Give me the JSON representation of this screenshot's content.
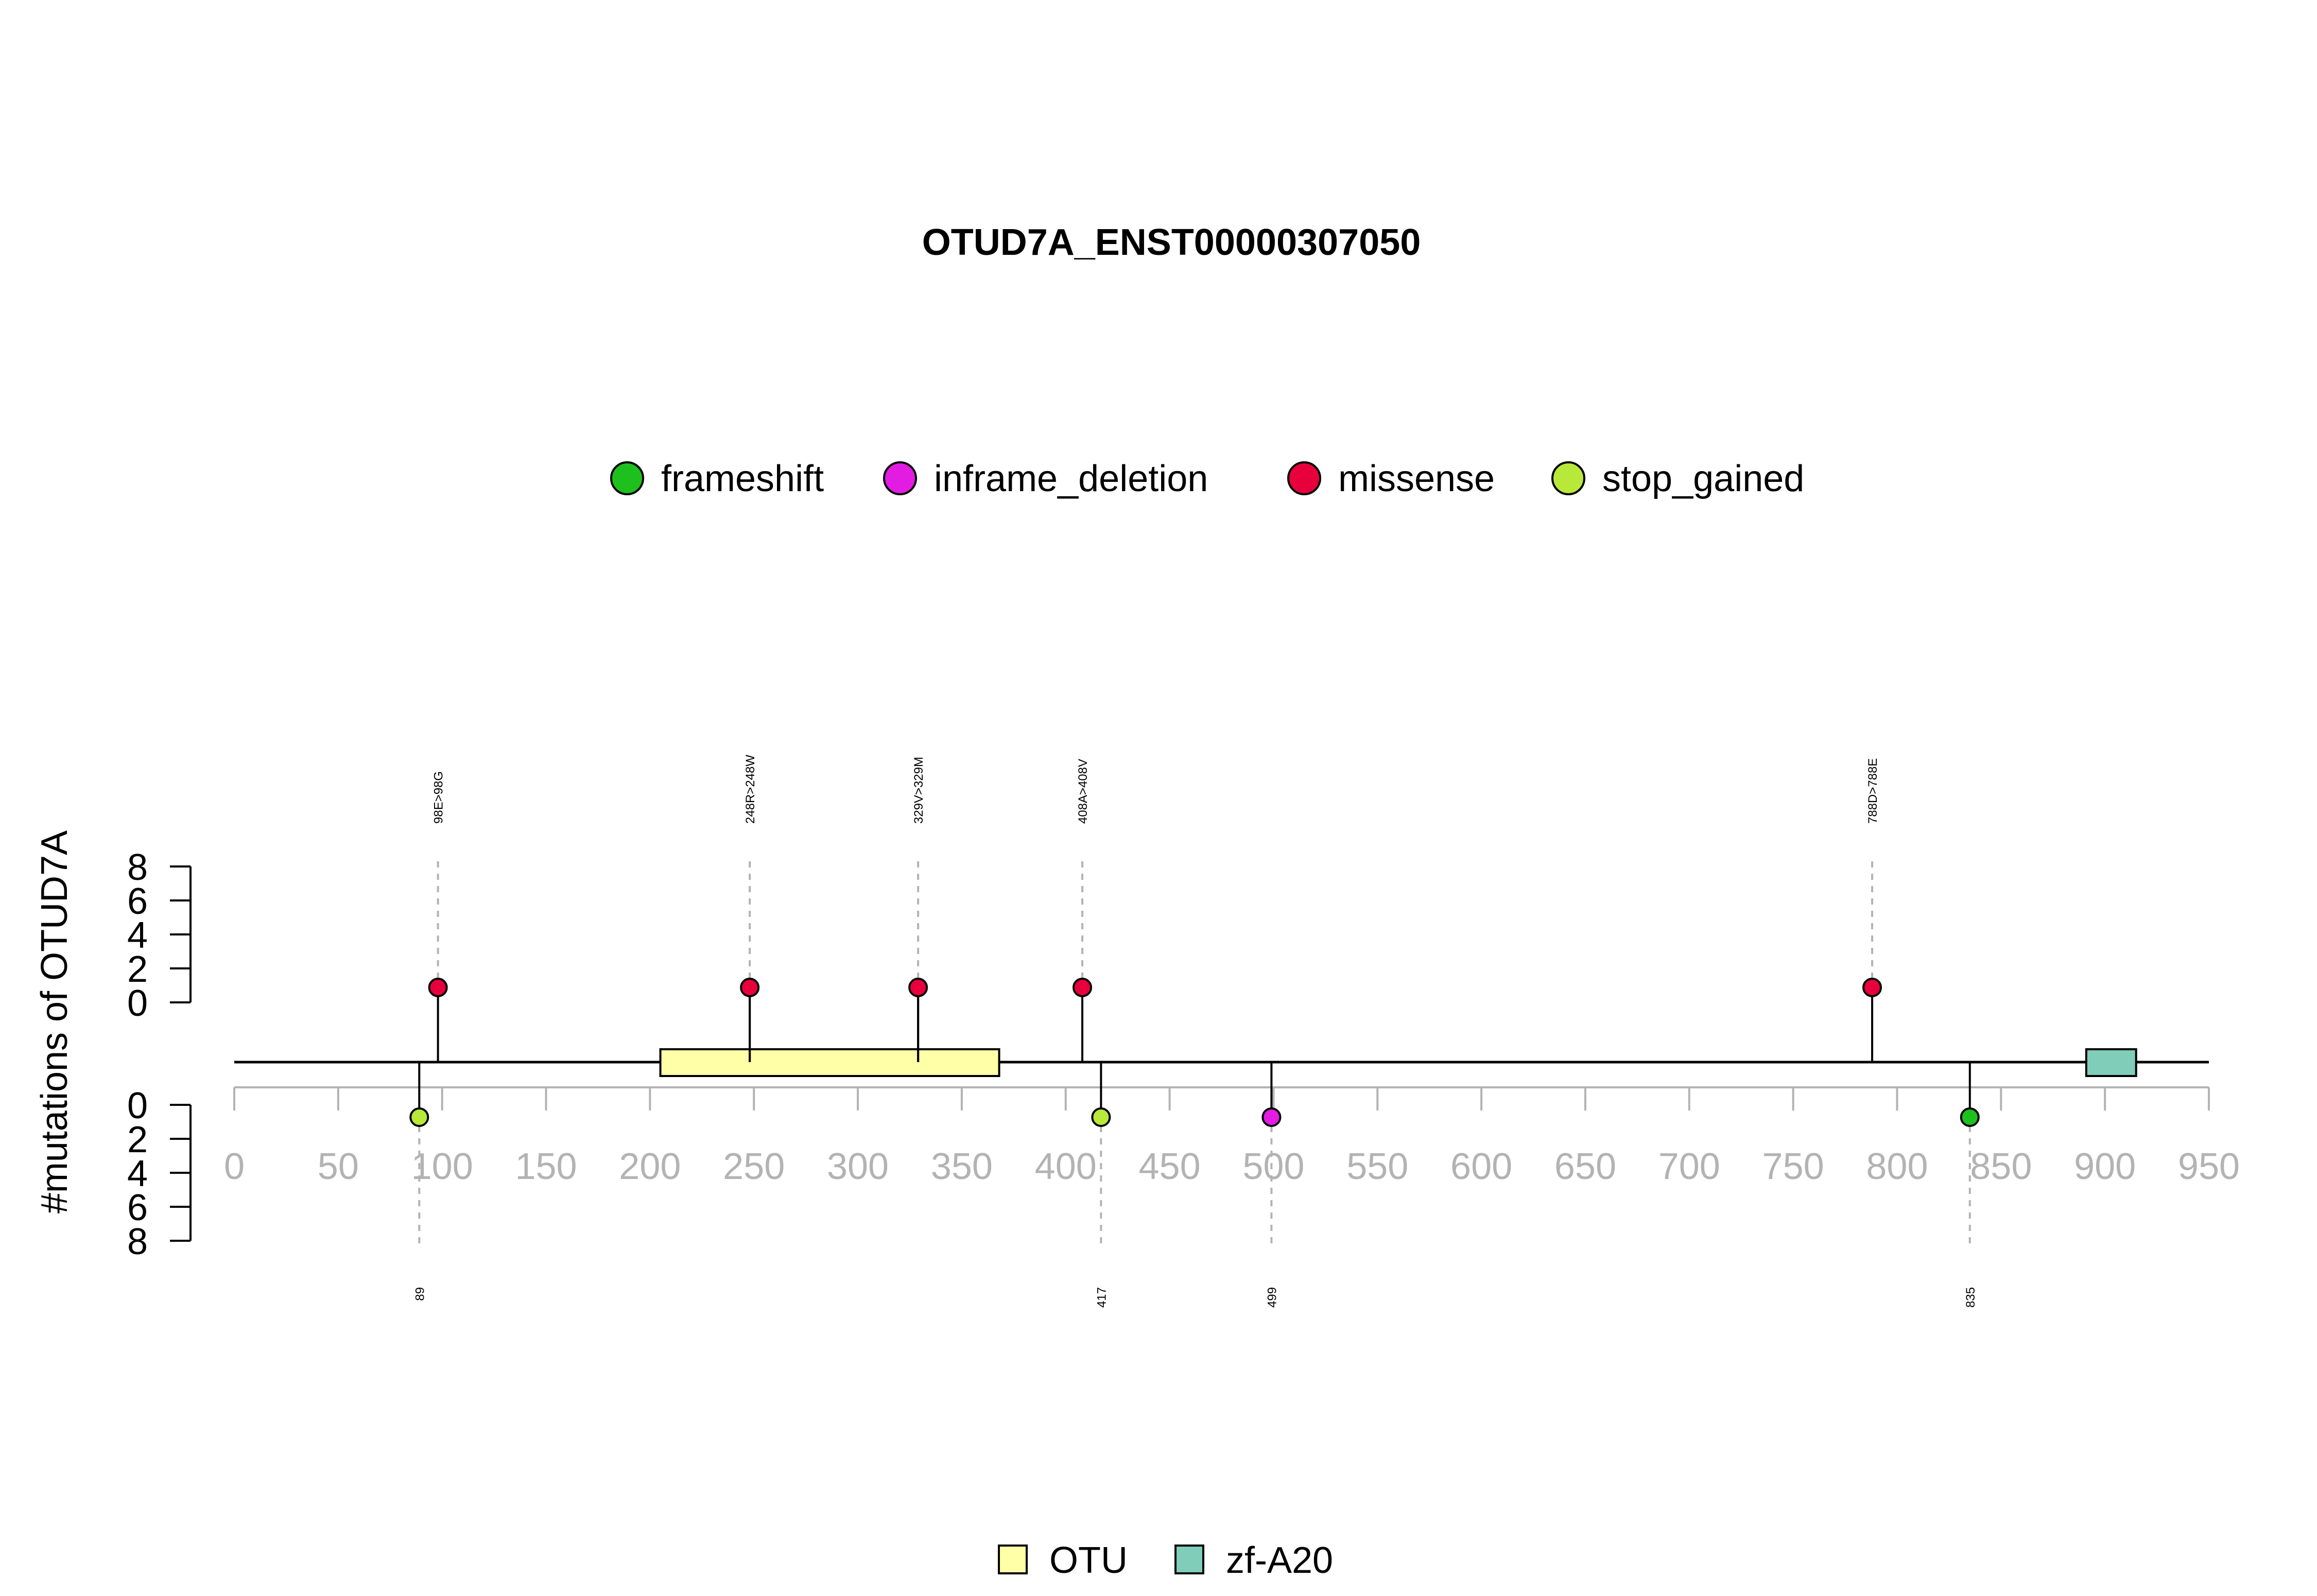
{
  "chart_data": {
    "type": "lollipop",
    "title": "OTUD7A_ENST00000307050",
    "ylabel": "#mutations of OTUD7A",
    "xlim": [
      0,
      950
    ],
    "x_ticks": [
      0,
      50,
      100,
      150,
      200,
      250,
      300,
      350,
      400,
      450,
      500,
      550,
      600,
      650,
      700,
      750,
      800,
      850,
      900,
      950
    ],
    "y_ticks": [
      0,
      2,
      4,
      6,
      8
    ],
    "protein_length": 950,
    "mutation_legend": [
      {
        "name": "frameshift",
        "color": "#1ec01e"
      },
      {
        "name": "inframe_deletion",
        "color": "#e21ce2"
      },
      {
        "name": "missense",
        "color": "#e8003c"
      },
      {
        "name": "stop_gained",
        "color": "#b8e83a"
      }
    ],
    "domain_legend": [
      {
        "name": "OTU",
        "color": "#ffffa8"
      },
      {
        "name": "zf-A20",
        "color": "#80cdb9"
      }
    ],
    "domains": [
      {
        "name": "OTU",
        "start": 205,
        "end": 368
      },
      {
        "name": "zf-A20",
        "start": 891,
        "end": 915
      }
    ],
    "mutations_top": [
      {
        "position": 98,
        "label": "98E>98G",
        "type": "missense",
        "count": 1
      },
      {
        "position": 248,
        "label": "248R>248W",
        "type": "missense",
        "count": 1
      },
      {
        "position": 329,
        "label": "329V>329M",
        "type": "missense",
        "count": 1
      },
      {
        "position": 408,
        "label": "408A>408V",
        "type": "missense",
        "count": 1
      },
      {
        "position": 788,
        "label": "788D>788E",
        "type": "missense",
        "count": 1
      }
    ],
    "mutations_bottom": [
      {
        "position": 89,
        "label": "89",
        "type": "stop_gained",
        "count": 1
      },
      {
        "position": 417,
        "label": "417",
        "type": "stop_gained",
        "count": 1
      },
      {
        "position": 499,
        "label": "499",
        "type": "inframe_deletion",
        "count": 1
      },
      {
        "position": 835,
        "label": "835",
        "type": "frameshift",
        "count": 1
      }
    ]
  }
}
